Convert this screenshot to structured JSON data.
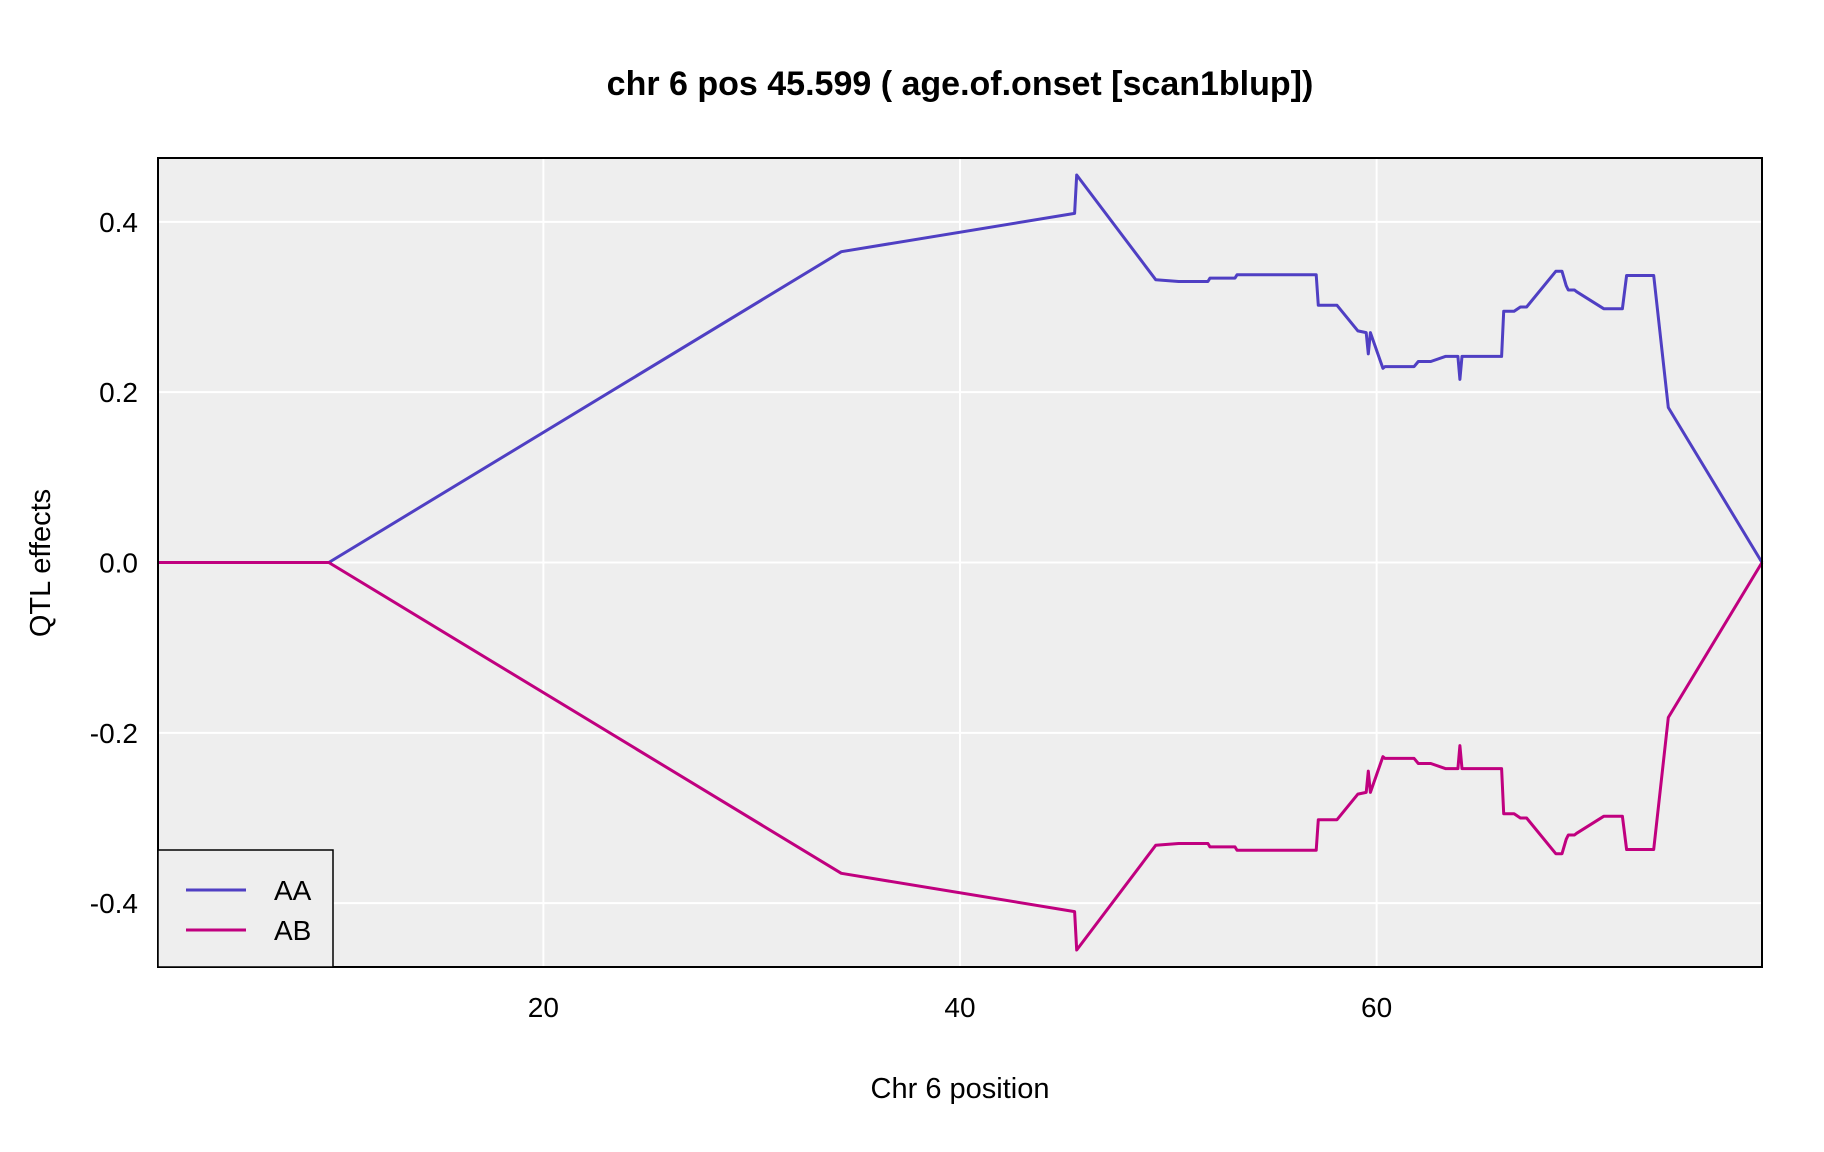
{
  "chart_data": {
    "type": "line",
    "title": "chr 6 pos 45.599 ( age.of.onset  [scan1blup])",
    "xlabel": "Chr 6 position",
    "ylabel": "QTL effects",
    "xlim": [
      1.5,
      78.5
    ],
    "ylim": [
      -0.475,
      0.475
    ],
    "xticks": [
      20,
      40,
      60
    ],
    "xtick_labels": [
      "20",
      "40",
      "60"
    ],
    "yticks": [
      -0.4,
      -0.2,
      0.0,
      0.2,
      0.4
    ],
    "ytick_labels": [
      "-0.4",
      "-0.2",
      "0.0",
      "0.2",
      "0.4"
    ],
    "grid": true,
    "background": "#eeeeee",
    "legend_position": "bottom-left",
    "series": [
      {
        "name": "AA",
        "color": "#4f3fc3",
        "x": [
          1.5,
          9.7,
          34.3,
          45.5,
          45.6,
          49.4,
          50.5,
          51.9,
          52.0,
          53.2,
          53.3,
          57.1,
          57.2,
          58.1,
          59.1,
          59.5,
          59.6,
          59.7,
          60.3,
          60.4,
          61.8,
          62.0,
          62.6,
          63.3,
          63.9,
          64.0,
          64.1,
          66.0,
          66.1,
          66.6,
          66.9,
          67.2,
          68.6,
          68.9,
          69.1,
          69.2,
          69.5,
          69.6,
          70.9,
          71.8,
          72.0,
          73.3,
          74.0,
          78.5
        ],
        "y": [
          0.0,
          0.0,
          0.365,
          0.41,
          0.455,
          0.332,
          0.33,
          0.33,
          0.334,
          0.334,
          0.338,
          0.338,
          0.302,
          0.302,
          0.272,
          0.27,
          0.245,
          0.27,
          0.228,
          0.23,
          0.23,
          0.236,
          0.236,
          0.242,
          0.242,
          0.215,
          0.242,
          0.242,
          0.295,
          0.295,
          0.3,
          0.3,
          0.342,
          0.342,
          0.325,
          0.32,
          0.32,
          0.318,
          0.298,
          0.298,
          0.337,
          0.337,
          0.182,
          0.0
        ]
      },
      {
        "name": "AB",
        "color": "#c0007f",
        "x": [
          1.5,
          9.7,
          34.3,
          45.5,
          45.6,
          49.4,
          50.5,
          51.9,
          52.0,
          53.2,
          53.3,
          57.1,
          57.2,
          58.1,
          59.1,
          59.5,
          59.6,
          59.7,
          60.3,
          60.4,
          61.8,
          62.0,
          62.6,
          63.3,
          63.9,
          64.0,
          64.1,
          66.0,
          66.1,
          66.6,
          66.9,
          67.2,
          68.6,
          68.9,
          69.1,
          69.2,
          69.5,
          69.6,
          70.9,
          71.8,
          72.0,
          73.3,
          74.0,
          78.5
        ],
        "y": [
          0.0,
          0.0,
          -0.365,
          -0.41,
          -0.455,
          -0.332,
          -0.33,
          -0.33,
          -0.334,
          -0.334,
          -0.338,
          -0.338,
          -0.302,
          -0.302,
          -0.272,
          -0.27,
          -0.245,
          -0.27,
          -0.228,
          -0.23,
          -0.23,
          -0.236,
          -0.236,
          -0.242,
          -0.242,
          -0.215,
          -0.242,
          -0.242,
          -0.295,
          -0.295,
          -0.3,
          -0.3,
          -0.342,
          -0.342,
          -0.325,
          -0.32,
          -0.32,
          -0.318,
          -0.298,
          -0.298,
          -0.337,
          -0.337,
          -0.182,
          0.0
        ]
      }
    ]
  }
}
